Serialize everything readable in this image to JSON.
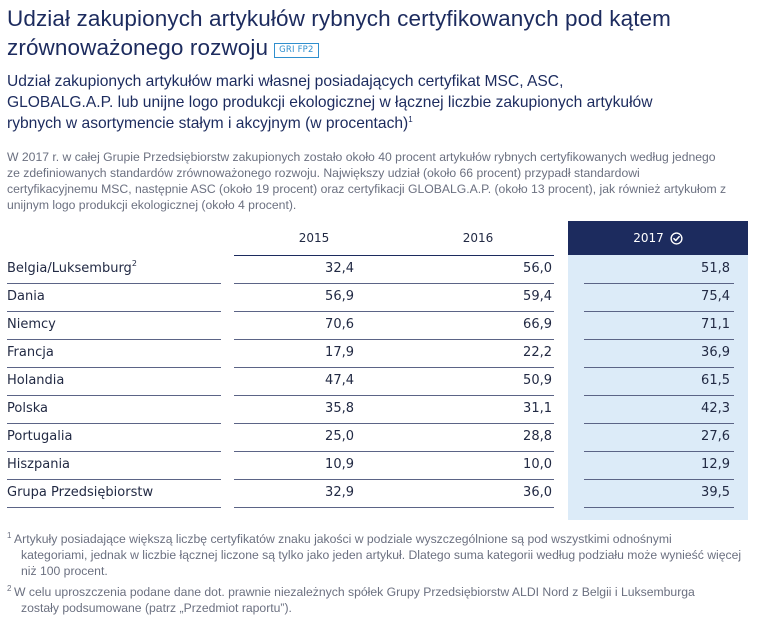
{
  "title": "Udział zakupionych artykułów rybnych certyfikowanych pod kątem zrównoważonego rozwoju",
  "gri_badge": "GRI FP2",
  "subtitle": "Udział zakupionych artykułów marki własnej posiadających certyfikat MSC, ASC, GLOBALG.A.P. lub unijne logo produkcji ekologicznej w łącznej liczbie zakupionych artykułów rybnych w asortymencie stałym i akcyjnym (w procentach)",
  "subtitle_sup": "1",
  "intro": "W 2017 r. w całej Grupie Przedsiębiorstw zakupionych zostało około 40 procent artykułów rybnych certyfikowanych według jednego ze zdefiniowanych standardów zrównoważonego rozwoju. Największy udział (około 66 procent) przypadł standardowi certyfikacyjnemu MSC, następnie ASC (około 19 procent) oraz certyfikacji GLOBALG.A.P. (około 13 procent), jak również artykułom z unijnym logo produkcji ekologicznej (około 4 procent).",
  "table": {
    "columns": [
      "2015",
      "2016",
      "2017"
    ],
    "rows": [
      {
        "label": "Belgia/Luksemburg",
        "sup": "2",
        "v2015": "32,4",
        "v2016": "56,0",
        "v2017": "51,8"
      },
      {
        "label": "Dania",
        "sup": "",
        "v2015": "56,9",
        "v2016": "59,4",
        "v2017": "75,4"
      },
      {
        "label": "Niemcy",
        "sup": "",
        "v2015": "70,6",
        "v2016": "66,9",
        "v2017": "71,1"
      },
      {
        "label": "Francja",
        "sup": "",
        "v2015": "17,9",
        "v2016": "22,2",
        "v2017": "36,9"
      },
      {
        "label": "Holandia",
        "sup": "",
        "v2015": "47,4",
        "v2016": "50,9",
        "v2017": "61,5"
      },
      {
        "label": "Polska",
        "sup": "",
        "v2015": "35,8",
        "v2016": "31,1",
        "v2017": "42,3"
      },
      {
        "label": "Portugalia",
        "sup": "",
        "v2015": "25,0",
        "v2016": "28,8",
        "v2017": "27,6"
      },
      {
        "label": "Hiszpania",
        "sup": "",
        "v2015": "10,9",
        "v2016": "10,0",
        "v2017": "12,9"
      },
      {
        "label": "Grupa Przedsiębiorstw",
        "sup": "",
        "v2015": "32,9",
        "v2016": "36,0",
        "v2017": "39,5"
      }
    ]
  },
  "footnotes": [
    {
      "num": "1",
      "line1": "Artykuły posiadające większą liczbę certyfikatów znaku jakości w podziale wyszczególnione są pod wszystkimi odnośnymi",
      "rest": "kategoriami, jednak w liczbie łącznej liczone są tylko jako jeden artykuł. Dlatego suma kategorii według podziału może wynieść więcej niż 100 procent."
    },
    {
      "num": "2",
      "line1": "W celu uproszczenia podane dane dot. prawnie niezależnych spółek Grupy Przedsiębiorstw ALDI Nord z Belgii i Luksemburga",
      "rest": "zostały podsumowane (patrz „Przedmiot raportu”)."
    }
  ],
  "colors": {
    "navy": "#1c2b5e",
    "highlight": "#dcebf8",
    "badge": "#2f8fce",
    "body_text": "#6b7080"
  }
}
